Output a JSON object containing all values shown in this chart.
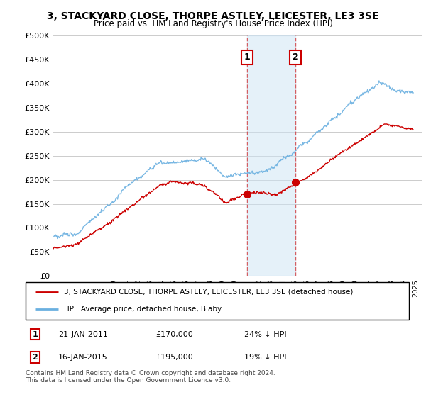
{
  "title": "3, STACKYARD CLOSE, THORPE ASTLEY, LEICESTER, LE3 3SE",
  "subtitle": "Price paid vs. HM Land Registry's House Price Index (HPI)",
  "ylabel_ticks": [
    "£0",
    "£50K",
    "£100K",
    "£150K",
    "£200K",
    "£250K",
    "£300K",
    "£350K",
    "£400K",
    "£450K",
    "£500K"
  ],
  "ytick_vals": [
    0,
    50000,
    100000,
    150000,
    200000,
    250000,
    300000,
    350000,
    400000,
    450000,
    500000
  ],
  "ylim": [
    0,
    500000
  ],
  "xlim_start": 1995.0,
  "xlim_end": 2025.5,
  "transaction1_x": 2011.05,
  "transaction2_x": 2015.04,
  "transaction1_y": 170000,
  "transaction2_y": 195000,
  "transaction1_label": "1",
  "transaction2_label": "2",
  "shade_color": "#cce4f5",
  "shade_alpha": 0.5,
  "vline_color": "#cc0000",
  "vline_alpha": 0.6,
  "legend_line1": "3, STACKYARD CLOSE, THORPE ASTLEY, LEICESTER, LE3 3SE (detached house)",
  "legend_line2": "HPI: Average price, detached house, Blaby",
  "table_row1": [
    "1",
    "21-JAN-2011",
    "£170,000",
    "24% ↓ HPI"
  ],
  "table_row2": [
    "2",
    "16-JAN-2015",
    "£195,000",
    "19% ↓ HPI"
  ],
  "footer": "Contains HM Land Registry data © Crown copyright and database right 2024.\nThis data is licensed under the Open Government Licence v3.0.",
  "red_line_color": "#cc0000",
  "blue_line_color": "#6ab0e0",
  "background_color": "#ffffff",
  "grid_color": "#cccccc"
}
